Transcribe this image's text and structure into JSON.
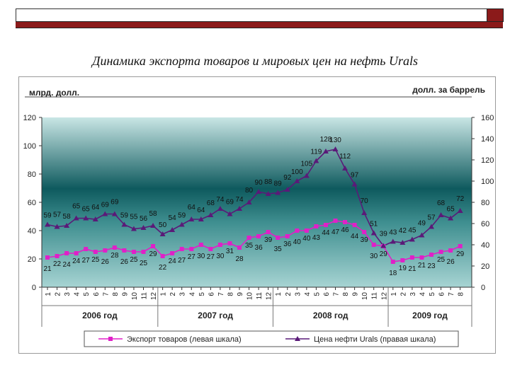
{
  "slide": {
    "title": "Динамика экспорта  товаров и мировых цен на нефть Urals"
  },
  "colors": {
    "export": "#e020c8",
    "oil": "#5a1a78",
    "band_dark": "#0e5a5e",
    "band_light": "#b7dedd",
    "header_bar": "#8b1a1a"
  },
  "chart_data": {
    "type": "line",
    "title": "",
    "left_axis": {
      "unit": "млрд. долл.",
      "ylim": [
        0,
        120
      ],
      "ticks": [
        0,
        20,
        40,
        60,
        80,
        100,
        120
      ]
    },
    "right_axis": {
      "unit": "долл. за баррель",
      "ylim": [
        0,
        160
      ],
      "ticks": [
        0,
        20,
        40,
        60,
        80,
        100,
        120,
        140,
        160
      ]
    },
    "x": {
      "months": [
        "1",
        "2",
        "3",
        "4",
        "5",
        "6",
        "7",
        "8",
        "9",
        "10",
        "11",
        "12",
        "1",
        "2",
        "3",
        "4",
        "5",
        "6",
        "7",
        "8",
        "9",
        "10",
        "11",
        "12",
        "1",
        "2",
        "3",
        "4",
        "5",
        "6",
        "7",
        "8",
        "9",
        "10",
        "11",
        "12",
        "1",
        "2",
        "3",
        "4",
        "5",
        "6",
        "7",
        "8"
      ],
      "years": [
        {
          "label": "2006 год",
          "count": 12
        },
        {
          "label": "2007 год",
          "count": 12
        },
        {
          "label": "2008 год",
          "count": 12
        },
        {
          "label": "2009 год",
          "count": 8
        }
      ]
    },
    "series": [
      {
        "name": "Экспорт товаров (левая шкала)",
        "axis": "left",
        "values": [
          21,
          22,
          24,
          24,
          27,
          25,
          26,
          28,
          26,
          25,
          25,
          29,
          22,
          24,
          27,
          27,
          30,
          27,
          30,
          31,
          28,
          35,
          36,
          39,
          35,
          36,
          40,
          40,
          43,
          44,
          47,
          46,
          44,
          39,
          30,
          29,
          18,
          19,
          21,
          21,
          23,
          25,
          26,
          29
        ]
      },
      {
        "name": "Цена нефти Urals (правая шкала)",
        "axis": "right",
        "values": [
          59,
          57,
          58,
          65,
          65,
          64,
          69,
          69,
          59,
          55,
          56,
          58,
          50,
          54,
          59,
          64,
          64,
          68,
          74,
          69,
          74,
          80,
          90,
          88,
          89,
          92,
          100,
          105,
          119,
          128,
          130,
          112,
          97,
          70,
          51,
          39,
          43,
          42,
          45,
          49,
          57,
          68,
          65,
          72
        ]
      }
    ]
  }
}
